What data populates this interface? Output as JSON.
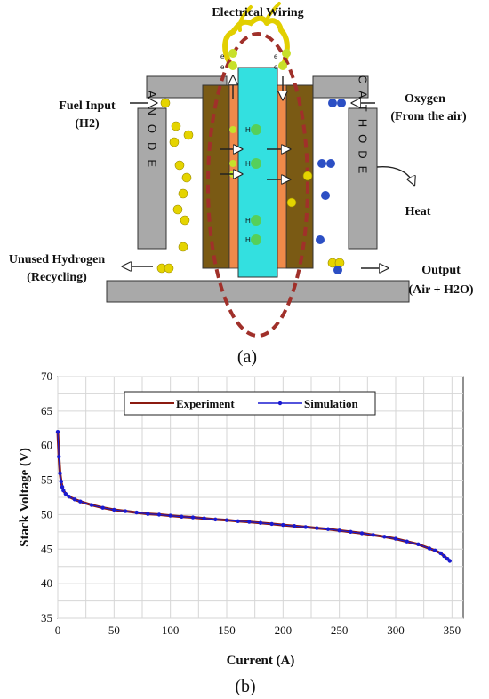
{
  "diagram": {
    "electrical_wiring": "Electrical Wiring",
    "fuel_input": [
      "Fuel Input",
      "(H2)"
    ],
    "oxygen": [
      "Oxygen",
      "(From the air)"
    ],
    "anode": "ANODE",
    "cathode": "CATHODE",
    "heat": "Heat",
    "unused_hydrogen": [
      "Unused Hydrogen",
      "(Recycling)"
    ],
    "output": [
      "Output",
      "(Air + H2O)"
    ],
    "electron": "e",
    "electron_sign": "-",
    "proton": "H",
    "proton_sign": "+",
    "panel_label": "(a)",
    "colors": {
      "membrane": "#33e0e0",
      "catalyst": "#f08a4a",
      "gdl": "#7a5a14",
      "plate": "#a0a0a0",
      "hydrogen": "#e5d400",
      "oxygen": "#2c4fc4",
      "wire": "#e0d000",
      "circuit": "#a0302a"
    }
  },
  "chart_data": {
    "type": "line",
    "xlabel": "Current (A)",
    "ylabel": "Stack Voltage (V)",
    "xlim": [
      0,
      360
    ],
    "ylim": [
      35,
      70
    ],
    "xticks": [
      0,
      50,
      100,
      150,
      200,
      250,
      300,
      350
    ],
    "yticks": [
      35,
      40,
      45,
      50,
      55,
      60,
      65,
      70
    ],
    "grid": true,
    "legend_position": "top",
    "panel_label": "(b)",
    "series": [
      {
        "name": "Experiment",
        "color": "#8b1a10",
        "marker": "plus",
        "x": [
          0,
          1,
          2,
          3,
          4,
          5,
          7,
          10,
          15,
          20,
          30,
          40,
          50,
          60,
          70,
          80,
          90,
          100,
          110,
          120,
          130,
          140,
          150,
          160,
          170,
          180,
          190,
          200,
          210,
          220,
          230,
          240,
          250,
          260,
          270,
          280,
          290,
          300,
          310,
          320,
          330,
          335,
          340,
          343,
          346,
          348
        ],
        "y": [
          62.0,
          58.5,
          56.0,
          54.8,
          54.0,
          53.5,
          53.0,
          52.6,
          52.2,
          51.9,
          51.4,
          51.0,
          50.7,
          50.5,
          50.3,
          50.1,
          50.0,
          49.85,
          49.7,
          49.6,
          49.45,
          49.3,
          49.2,
          49.05,
          48.95,
          48.8,
          48.65,
          48.5,
          48.35,
          48.2,
          48.05,
          47.9,
          47.7,
          47.5,
          47.3,
          47.05,
          46.8,
          46.5,
          46.1,
          45.7,
          45.1,
          44.8,
          44.4,
          44.0,
          43.6,
          43.3
        ]
      },
      {
        "name": "Simulation",
        "color": "#1a1ad0",
        "marker": "dot",
        "x": [
          0,
          1,
          2,
          3,
          4,
          5,
          7,
          10,
          15,
          20,
          30,
          40,
          50,
          60,
          70,
          80,
          90,
          100,
          110,
          120,
          130,
          140,
          150,
          160,
          170,
          180,
          190,
          200,
          210,
          220,
          230,
          240,
          250,
          260,
          270,
          280,
          290,
          300,
          310,
          320,
          330,
          335,
          340,
          343,
          346,
          348
        ],
        "y": [
          62.0,
          58.4,
          56.0,
          54.8,
          54.0,
          53.5,
          53.0,
          52.6,
          52.2,
          51.9,
          51.4,
          51.0,
          50.7,
          50.5,
          50.3,
          50.1,
          50.0,
          49.85,
          49.7,
          49.6,
          49.45,
          49.3,
          49.2,
          49.05,
          48.95,
          48.8,
          48.65,
          48.5,
          48.35,
          48.2,
          48.05,
          47.9,
          47.7,
          47.5,
          47.3,
          47.05,
          46.8,
          46.5,
          46.1,
          45.7,
          45.1,
          44.8,
          44.4,
          44.0,
          43.6,
          43.3
        ]
      }
    ]
  }
}
